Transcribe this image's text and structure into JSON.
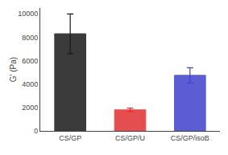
{
  "chart_data": {
    "type": "bar",
    "categories": [
      "CS/GP",
      "CS/GP/U",
      "CS/GP/isoB"
    ],
    "values": [
      8300,
      1800,
      4750
    ],
    "errors": [
      1700,
      150,
      650
    ],
    "colors": [
      "#1a1a1a",
      "#e03030",
      "#4040cc"
    ],
    "ylabel": "G’ (Pa)",
    "ylim": [
      0,
      10500
    ],
    "yticks": [
      0,
      2000,
      4000,
      6000,
      8000,
      10000
    ],
    "grid": false
  }
}
